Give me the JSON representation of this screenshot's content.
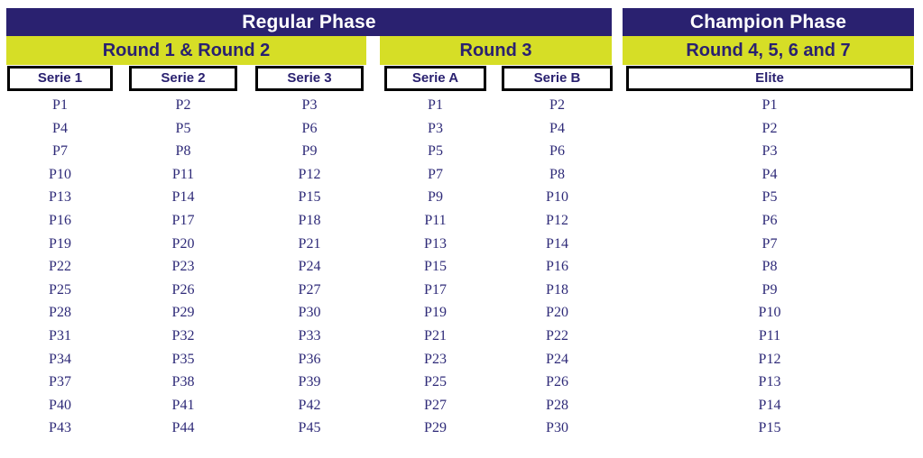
{
  "colors": {
    "navy": "#2a2170",
    "yellow": "#d6de26",
    "player_text": "#2e2a78",
    "box_border": "#000000",
    "background": "#ffffff"
  },
  "phases": {
    "regular": {
      "title": "Regular Phase"
    },
    "champion": {
      "title": "Champion Phase"
    }
  },
  "rounds": {
    "round12": "Round 1 & Round 2",
    "round3": "Round 3",
    "round4567": "Round 4, 5, 6 and 7"
  },
  "series": [
    {
      "header": "Serie 1",
      "players": [
        "P1",
        "P4",
        "P7",
        "P10",
        "P13",
        "P16",
        "P19",
        "P22",
        "P25",
        "P28",
        "P31",
        "P34",
        "P37",
        "P40",
        "P43"
      ]
    },
    {
      "header": "Serie 2",
      "players": [
        "P2",
        "P5",
        "P8",
        "P11",
        "P14",
        "P17",
        "P20",
        "P23",
        "P26",
        "P29",
        "P32",
        "P35",
        "P38",
        "P41",
        "P44"
      ]
    },
    {
      "header": "Serie 3",
      "players": [
        "P3",
        "P6",
        "P9",
        "P12",
        "P15",
        "P18",
        "P21",
        "P24",
        "P27",
        "P30",
        "P33",
        "P36",
        "P39",
        "P42",
        "P45"
      ]
    },
    {
      "header": "Serie A",
      "players": [
        "P1",
        "P3",
        "P5",
        "P7",
        "P9",
        "P11",
        "P13",
        "P15",
        "P17",
        "P19",
        "P21",
        "P23",
        "P25",
        "P27",
        "P29"
      ]
    },
    {
      "header": "Serie B",
      "players": [
        "P2",
        "P4",
        "P6",
        "P8",
        "P10",
        "P12",
        "P14",
        "P16",
        "P18",
        "P20",
        "P22",
        "P24",
        "P26",
        "P28",
        "P30"
      ]
    },
    {
      "header": "Elite",
      "players": [
        "P1",
        "P2",
        "P3",
        "P4",
        "P5",
        "P6",
        "P7",
        "P8",
        "P9",
        "P10",
        "P11",
        "P12",
        "P13",
        "P14",
        "P15"
      ]
    }
  ]
}
